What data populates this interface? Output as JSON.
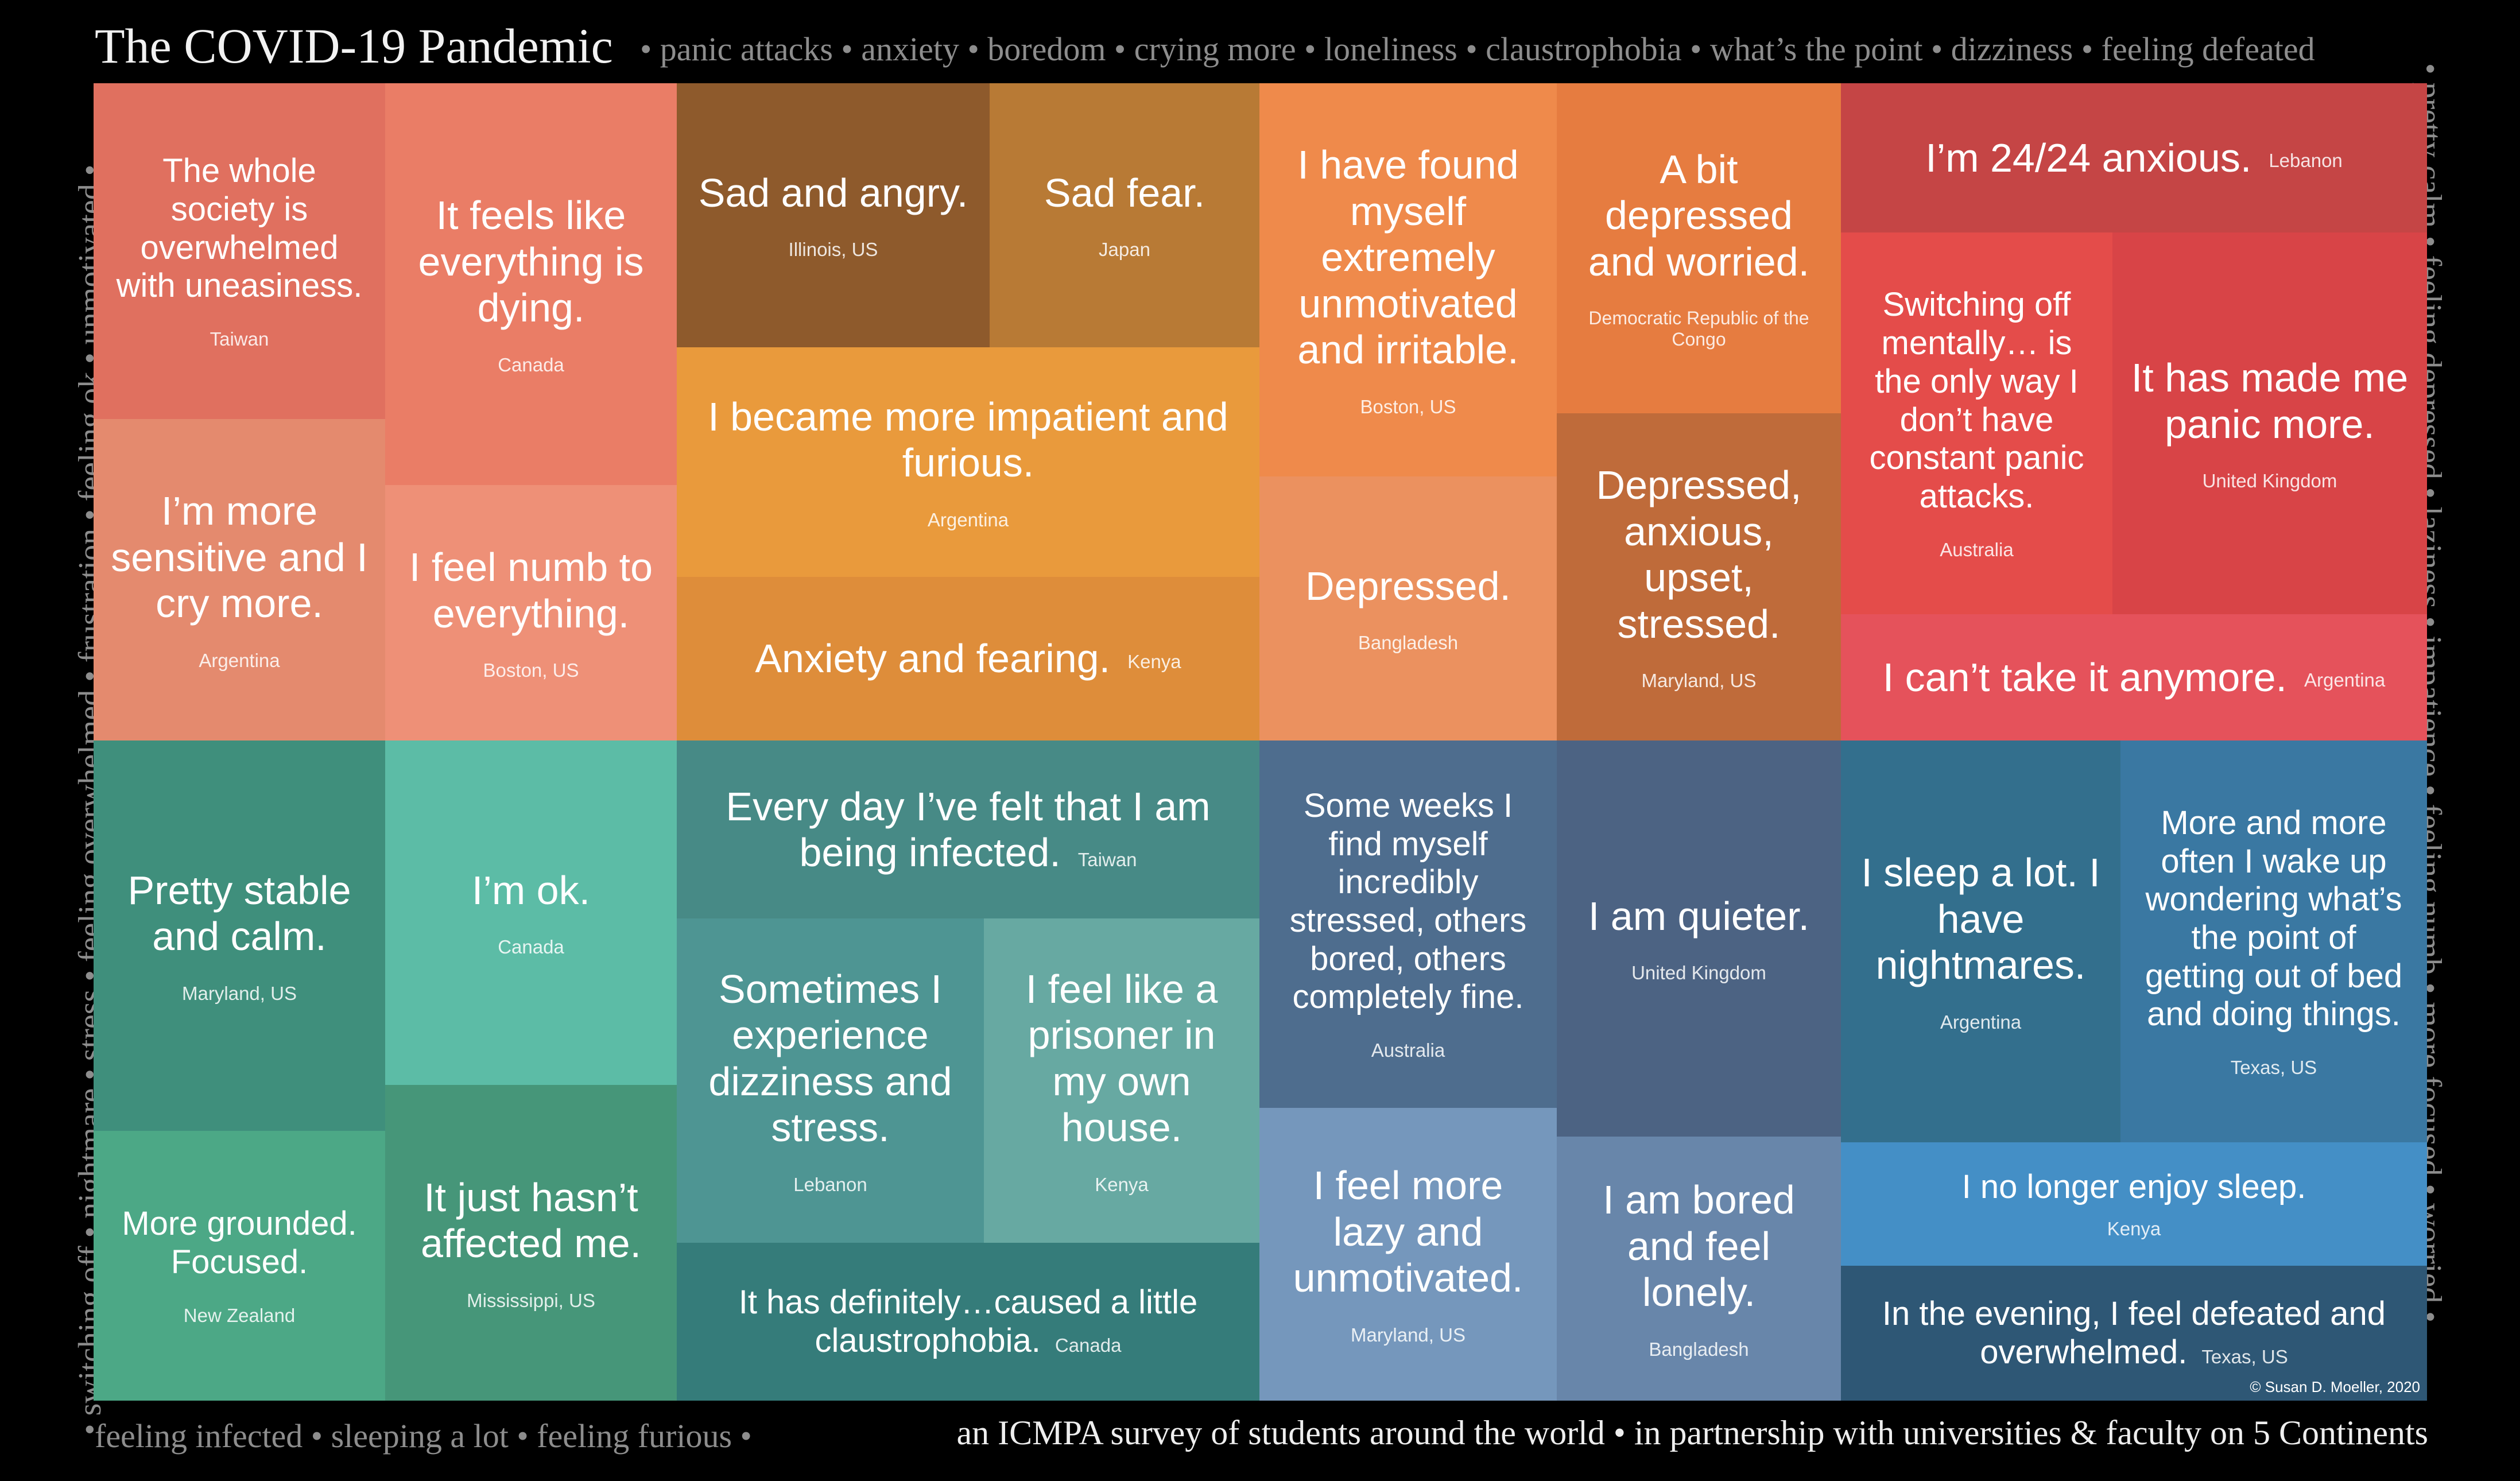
{
  "title": "The COVID-19 Pandemic",
  "top_words": "• panic attacks • anxiety • boredom • crying more • loneliness • claustrophobia • what’s the point • dizziness • feeling defeated",
  "bottom_left_words": "feeling infected • sleeping a lot • feeling  furious •",
  "bottom_right_text": "an ICMPA survey of students around the world  •  in partnership with universities & faculty on 5 Continents",
  "left_words": "• switching off • nightmare • stress • feeling overwhelmed • frustration • feeling ok • unmotivated •",
  "right_words": "• pretty calm • feeling depressed • laziness • impatience • feeling numb • more focused • worried •",
  "copyright": "© Susan D. Moeller, 2020",
  "colors": {
    "background": "#000000",
    "warm_tones": "#e8735c",
    "cool_tones": "#3f8f7c"
  },
  "tiles": [
    {
      "quote": "The whole society is overwhelmed with uneasiness.",
      "location": "Taiwan",
      "color": "#e0705f"
    },
    {
      "quote": "I’m more sensitive and I cry more.",
      "location": "Argentina",
      "color": "#e48a6e"
    },
    {
      "quote": "It feels like everything is dying.",
      "location": "Canada",
      "color": "#ea7d66"
    },
    {
      "quote": "I feel numb to everything.",
      "location": "Boston, US",
      "color": "#ee9077"
    },
    {
      "quote": "Sad and angry.",
      "location": "Illinois, US",
      "color": "#8e5a2c"
    },
    {
      "quote": "Sad fear.",
      "location": "Japan",
      "color": "#b87a35"
    },
    {
      "quote": "I became more impatient and furious.",
      "location": "Argentina",
      "color": "#e99a3c"
    },
    {
      "quote": "Anxiety and fearing.",
      "location": "Kenya",
      "color": "#de8d3a"
    },
    {
      "quote": "I have found myself extremely unmotivated and irritable.",
      "location": "Boston, US",
      "color": "#ef8a4b"
    },
    {
      "quote": "Depressed.",
      "location": "Bangladesh",
      "color": "#eb915f"
    },
    {
      "quote": "A bit depressed and worried.",
      "location": "Democratic Republic of the Congo",
      "color": "#e67c40"
    },
    {
      "quote": "Depressed, anxious, upset, stressed.",
      "location": "Maryland, US",
      "color": "#bf6b3a"
    },
    {
      "quote": "I’m 24/24 anxious.",
      "location": "Lebanon",
      "color": "#c54545"
    },
    {
      "quote": "Switching off mentally… is the only way I don’t have constant panic attacks.",
      "location": "Australia",
      "color": "#e44c4a"
    },
    {
      "quote": "It has made me panic more.",
      "location": "United Kingdom",
      "color": "#d84447"
    },
    {
      "quote": "I can’t take it anymore.",
      "location": "Argentina",
      "color": "#e5525b"
    },
    {
      "quote": "Pretty stable and calm.",
      "location": "Maryland, US",
      "color": "#3f8f7c"
    },
    {
      "quote": "More grounded. Focused.",
      "location": "New Zealand",
      "color": "#4ca886"
    },
    {
      "quote": "I’m ok.",
      "location": "Canada",
      "color": "#5cbca6"
    },
    {
      "quote": "It just hasn’t affected me.",
      "location": "Mississippi, US",
      "color": "#469679"
    },
    {
      "quote": "Every day I’ve felt that I am being infected.",
      "location": "Taiwan",
      "color": "#478a86"
    },
    {
      "quote": "Sometimes I experience dizziness and stress.",
      "location": "Lebanon",
      "color": "#4e9593"
    },
    {
      "quote": "I feel like a prisoner in my own house.",
      "location": "Kenya",
      "color": "#67a9a2"
    },
    {
      "quote": "It has definitely…caused a little claustrophobia.",
      "location": "Canada",
      "color": "#357c7a"
    },
    {
      "quote": "Some weeks I find myself incredibly stressed, others bored, others completely fine.",
      "location": "Australia",
      "color": "#4e6d8e"
    },
    {
      "quote": "I feel more lazy and unmotivated.",
      "location": "Maryland, US",
      "color": "#7597bc"
    },
    {
      "quote": "I am quieter.",
      "location": "United Kingdom",
      "color": "#4c6383"
    },
    {
      "quote": "I am bored and feel lonely.",
      "location": "Bangladesh",
      "color": "#6886aa"
    },
    {
      "quote": "I sleep a lot. I have nightmares.",
      "location": "Argentina",
      "color": "#336f8d"
    },
    {
      "quote": "More and more often I wake up wondering what’s the point of getting out of bed and doing things.",
      "location": "Texas, US",
      "color": "#3a78a2"
    },
    {
      "quote": "I no longer enjoy sleep.",
      "location": "Kenya",
      "color": "#448fc6"
    },
    {
      "quote": "In the evening, I feel defeated and overwhelmed.",
      "location": "Texas, US",
      "color": "#2e5775"
    }
  ]
}
